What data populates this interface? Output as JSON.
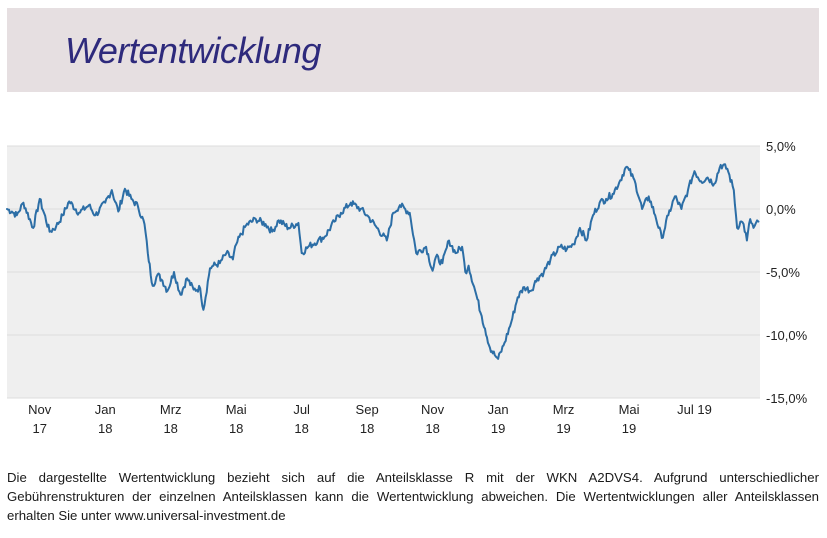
{
  "header": {
    "title": "Wertentwicklung"
  },
  "footnote": "Die dargestellte Wertentwicklung bezieht sich auf die Anteilsklasse R mit der WKN A2DVS4. Aufgrund unterschiedlicher Gebührenstrukturen der einzelnen Anteilsklassen kann die Wertentwicklung abweichen. Die Wertentwicklungen aller Anteilsklassen erhalten Sie unter www.universal-investment.de",
  "colors": {
    "header_bg": "#e6dfe1",
    "title": "#2e2a7c",
    "line": "#2c6ea6",
    "plot_bg": "#efefef"
  },
  "chart_data": {
    "type": "line",
    "title": "",
    "xlabel": "",
    "ylabel": "",
    "ylim": [
      -15,
      5
    ],
    "yticks": [
      5,
      0,
      -5,
      -10,
      -15
    ],
    "ytick_labels": [
      "5,0%",
      "0,0%",
      "-5,0%",
      "-10,0%",
      "-15,0%"
    ],
    "xticks": [
      {
        "m": 1,
        "line1": "Nov",
        "line2": "17"
      },
      {
        "m": 3,
        "line1": "Jan",
        "line2": "18"
      },
      {
        "m": 5,
        "line1": "Mrz",
        "line2": "18"
      },
      {
        "m": 7,
        "line1": "Mai",
        "line2": "18"
      },
      {
        "m": 9,
        "line1": "Jul",
        "line2": "18"
      },
      {
        "m": 11,
        "line1": "Sep",
        "line2": "18"
      },
      {
        "m": 13,
        "line1": "Nov",
        "line2": "18"
      },
      {
        "m": 15,
        "line1": "Jan",
        "line2": "19"
      },
      {
        "m": 17,
        "line1": "Mrz",
        "line2": "19"
      },
      {
        "m": 19,
        "line1": "Mai",
        "line2": "19"
      },
      {
        "m": 21,
        "line1": "Jul 19",
        "line2": ""
      }
    ],
    "grid": true,
    "series": [
      {
        "x": [
          0,
          0.15,
          0.3,
          0.5,
          0.8,
          1.0,
          1.3,
          1.5,
          1.7,
          1.9,
          2.2,
          2.5,
          2.7,
          3.0,
          3.2,
          3.4,
          3.6,
          3.8,
          4.0,
          4.2,
          4.3,
          4.45,
          4.6,
          4.75,
          4.9,
          5.1,
          5.3,
          5.5,
          5.7,
          5.9,
          6.0,
          6.2,
          6.3,
          6.5,
          6.7,
          6.9,
          7.0,
          7.3,
          7.6,
          7.9,
          8.1,
          8.3,
          8.6,
          8.9,
          9.0,
          9.2,
          9.5,
          9.7,
          10.0,
          10.2,
          10.5,
          10.8,
          11.0,
          11.3,
          11.6,
          11.8,
          12.0,
          12.3,
          12.5,
          12.8,
          13.0,
          13.1,
          13.3,
          13.5,
          13.7,
          13.9,
          14.0,
          14.1,
          14.3,
          14.5,
          14.6,
          14.75,
          14.9,
          15.0,
          15.2,
          15.4,
          15.6,
          15.8,
          16.0,
          16.2,
          16.4,
          16.6,
          16.9,
          17.1,
          17.3,
          17.5,
          17.7,
          17.9,
          18.1,
          18.3,
          18.5,
          18.7,
          18.9,
          19.0,
          19.2,
          19.4,
          19.6,
          19.8,
          20.0,
          20.2,
          20.4,
          20.6,
          20.8,
          21.0,
          21.2,
          21.4,
          21.6,
          21.8,
          22.0,
          22.2,
          22.3,
          22.4,
          22.5,
          22.6,
          22.7,
          22.8,
          22.95
        ],
        "values": [
          0.0,
          -0.2,
          -0.5,
          0.5,
          -1.5,
          0.8,
          -1.8,
          -1.4,
          -0.5,
          0.6,
          -0.3,
          0.3,
          -0.5,
          0.5,
          1.5,
          -0.2,
          1.6,
          0.8,
          0.2,
          -1.2,
          -3.5,
          -6.1,
          -5.2,
          -5.7,
          -6.5,
          -5.0,
          -6.8,
          -5.5,
          -6.4,
          -6.3,
          -8.0,
          -4.7,
          -4.5,
          -4.3,
          -3.5,
          -4.0,
          -2.8,
          -1.3,
          -0.8,
          -1.2,
          -1.8,
          -0.9,
          -1.5,
          -1.1,
          -3.5,
          -3.0,
          -2.5,
          -2.2,
          -1.0,
          -0.3,
          0.5,
          0.0,
          -0.5,
          -1.5,
          -2.5,
          -0.3,
          0.3,
          -0.3,
          -3.5,
          -3.0,
          -4.9,
          -3.8,
          -4.3,
          -2.5,
          -3.5,
          -3.0,
          -5.0,
          -4.5,
          -6.5,
          -8.5,
          -9.5,
          -11.0,
          -11.6,
          -11.9,
          -10.6,
          -9.0,
          -7.0,
          -6.2,
          -6.5,
          -5.5,
          -5.0,
          -4.0,
          -3.0,
          -3.2,
          -2.8,
          -1.5,
          -2.5,
          -0.5,
          0.5,
          0.8,
          1.2,
          2.1,
          3.3,
          3.1,
          2.0,
          0.0,
          1.0,
          -0.5,
          -2.3,
          -0.5,
          1.0,
          0.0,
          1.5,
          3.0,
          2.2,
          2.5,
          2.0,
          3.5,
          3.2,
          1.5,
          -1.5,
          -1.0,
          -1.2,
          -2.5,
          -0.8,
          -1.5,
          -1.0
        ]
      }
    ]
  }
}
